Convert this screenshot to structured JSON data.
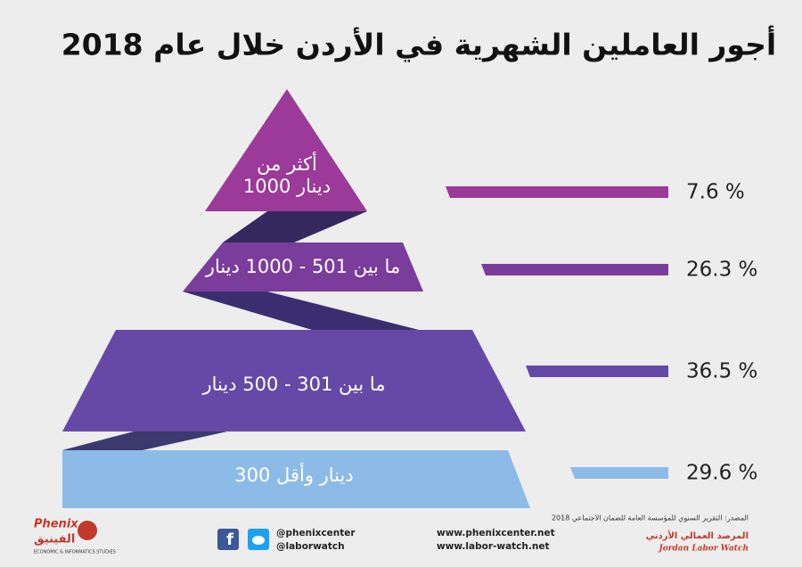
{
  "title": "أجور العاملين الشهرية في الأردن خلال عام 2018",
  "levels": [
    {
      "label_lines": [
        "أكثر من",
        "1000 دينار"
      ],
      "share": "7.6 %"
    },
    {
      "label_lines": [
        "ما بين  501 - 1000 دينار"
      ],
      "share": "26.3 %"
    },
    {
      "label_lines": [
        "ما بين  301 - 500 دينار"
      ],
      "share": "36.5 %"
    },
    {
      "label_lines": [
        "300 دينار وأقل"
      ],
      "share": "29.6 %"
    }
  ],
  "footer": {
    "left_logo": [
      "Phenix",
      "الفينيق",
      "ECONOMIC & INFORMATICS STUDIES"
    ],
    "social": [
      "@phenixcenter",
      "@laborwatch"
    ],
    "websites": [
      "www.phenixcenter.net",
      "www.labor-watch.net"
    ],
    "source": "المصدر: التقرير السنوي للمؤسسة العامة للضمان الاجتماعي 2018",
    "right_logo": [
      "المرصد العمالي الأردني",
      "Jordan Labor Watch"
    ]
  }
}
